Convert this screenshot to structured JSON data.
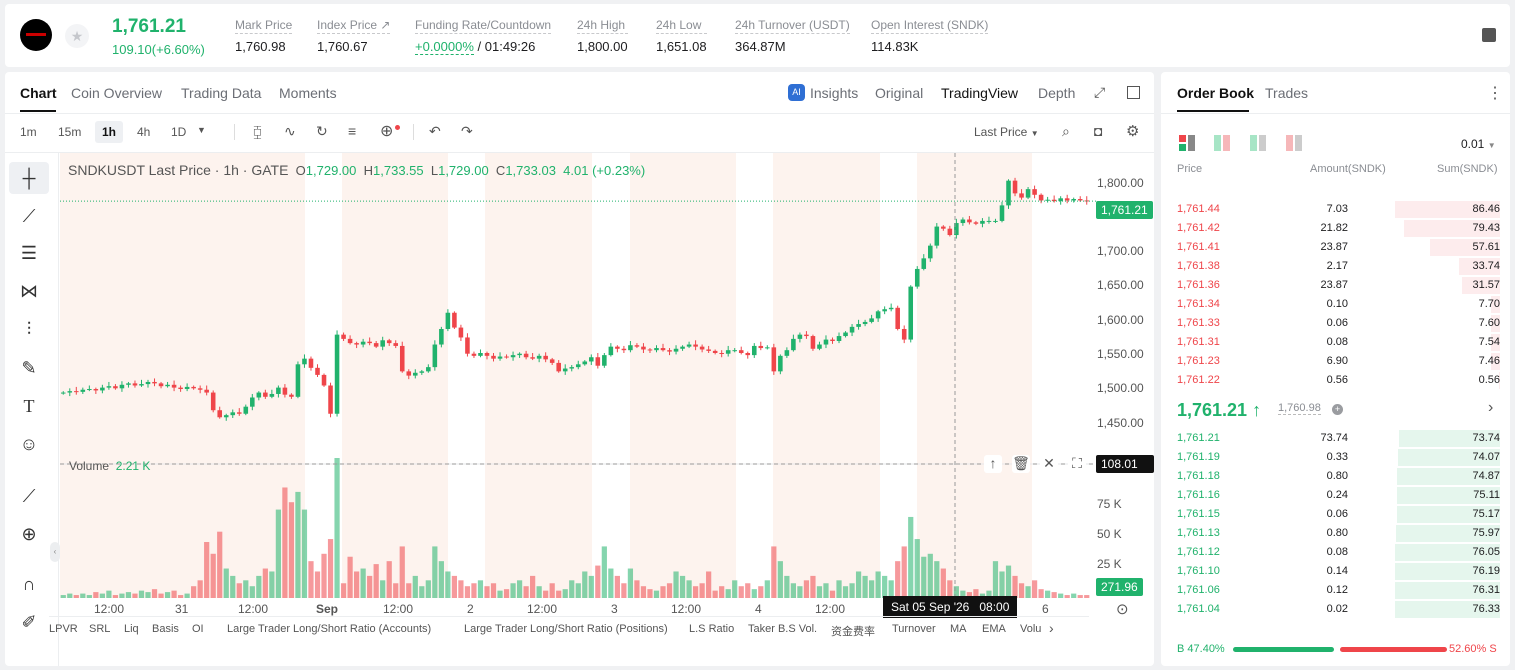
{
  "ticker": {
    "last": "1,761.21",
    "change": "109.10(+6.60%)",
    "stats": [
      {
        "label": "Mark Price",
        "value": "1,760.98"
      },
      {
        "label": "Index Price ↗",
        "value": "1,760.67"
      },
      {
        "label": "Funding Rate/Countdown",
        "value": "+0.0000%",
        "value2": " / 01:49:26"
      },
      {
        "label": "24h High",
        "value": "1,800.00"
      },
      {
        "label": "24h Low",
        "value": "1,651.08"
      },
      {
        "label": "24h Turnover (USDT)",
        "value": "364.87M"
      },
      {
        "label": "Open Interest (SNDK)",
        "value": "114.83K"
      }
    ]
  },
  "chart_tabs": [
    "Chart",
    "Coin Overview",
    "Trading Data",
    "Moments"
  ],
  "view_tabs": [
    "Insights",
    "Original",
    "TradingView",
    "Depth"
  ],
  "intervals": [
    "1m",
    "15m",
    "1h",
    "4h",
    "1D"
  ],
  "price_type": "Last Price",
  "legend": {
    "symbol": "SNDKUSDT Last Price · 1h · GATE",
    "o": "1,729.00",
    "h": "1,733.55",
    "l": "1,729.00",
    "c": "1,733.03",
    "chg": "4.01 (+0.23%)"
  },
  "volume_label": "Volume",
  "volume_value": "2.21 K",
  "price_axis": [
    "1,800.00",
    "1,750.00",
    "1,700.00",
    "1,650.00",
    "1,600.00",
    "1,550.00",
    "1,500.00",
    "1,450.00"
  ],
  "volume_axis": [
    "75 K",
    "50 K",
    "25 K"
  ],
  "time_axis": [
    "12:00",
    "31",
    "12:00",
    "Sep",
    "12:00",
    "2",
    "12:00",
    "3",
    "12:00",
    "4",
    "12:00",
    "6"
  ],
  "last_price_tag": "1,761.21",
  "volume_tag": "108.01 K",
  "volume_last_tag": "271.96",
  "crosshair_time": "Sat 05 Sep '26   08:00",
  "indicators": [
    "LPVR",
    "SRL",
    "Liq",
    "Basis",
    "OI",
    "Large Trader Long/Short Ratio (Accounts)",
    "Large Trader Long/Short Ratio (Positions)",
    "L.S Ratio",
    "Taker B.S Vol.",
    "资金费率",
    "Turnover",
    "MA",
    "EMA",
    "Volu"
  ],
  "chart_data": {
    "type": "candlestick",
    "interval": "1h",
    "symbol": "SNDKUSDT",
    "ylim": [
      1420,
      1815
    ],
    "close": [
      1490,
      1492,
      1491,
      1494,
      1495,
      1493,
      1497,
      1499,
      1496,
      1501,
      1503,
      1500,
      1502,
      1505,
      1503,
      1499,
      1501,
      1497,
      1495,
      1498,
      1496,
      1494,
      1490,
      1465,
      1455,
      1458,
      1462,
      1460,
      1470,
      1483,
      1490,
      1484,
      1488,
      1497,
      1487,
      1484,
      1530,
      1538,
      1525,
      1515,
      1500,
      1460,
      1572,
      1566,
      1560,
      1558,
      1562,
      1560,
      1555,
      1564,
      1560,
      1556,
      1520,
      1514,
      1518,
      1520,
      1526,
      1558,
      1580,
      1603,
      1582,
      1568,
      1545,
      1542,
      1546,
      1542,
      1538,
      1541,
      1540,
      1543,
      1545,
      1540,
      1538,
      1542,
      1537,
      1532,
      1520,
      1524,
      1526,
      1530,
      1534,
      1540,
      1528,
      1543,
      1555,
      1552,
      1550,
      1557,
      1555,
      1551,
      1550,
      1553,
      1550,
      1548,
      1552,
      1555,
      1558,
      1555,
      1551,
      1549,
      1546,
      1545,
      1550,
      1550,
      1546,
      1543,
      1556,
      1553,
      1554,
      1520,
      1542,
      1550,
      1566,
      1572,
      1570,
      1552,
      1558,
      1565,
      1563,
      1570,
      1575,
      1583,
      1587,
      1590,
      1595,
      1605,
      1608,
      1610,
      1580,
      1565,
      1640,
      1665,
      1680,
      1698,
      1725,
      1722,
      1713,
      1730,
      1735,
      1731,
      1729,
      1733,
      1733,
      1733,
      1755,
      1790,
      1772,
      1766,
      1778,
      1770,
      1762,
      1763,
      1761,
      1765,
      1762,
      1764,
      1762,
      1761
    ],
    "volume": [
      2,
      3,
      2,
      3,
      2,
      4,
      3,
      5,
      2,
      3,
      4,
      3,
      5,
      4,
      6,
      3,
      4,
      5,
      2,
      3,
      8,
      12,
      38,
      30,
      45,
      20,
      15,
      10,
      12,
      8,
      15,
      20,
      18,
      60,
      75,
      65,
      72,
      60,
      25,
      18,
      30,
      40,
      95,
      10,
      28,
      18,
      20,
      15,
      23,
      12,
      25,
      10,
      35,
      10,
      15,
      8,
      12,
      35,
      25,
      18,
      15,
      12,
      8,
      10,
      12,
      8,
      10,
      5,
      6,
      10,
      12,
      8,
      15,
      8,
      5,
      10,
      5,
      6,
      12,
      10,
      18,
      15,
      22,
      35,
      20,
      15,
      10,
      20,
      12,
      8,
      6,
      5,
      8,
      10,
      18,
      15,
      12,
      8,
      10,
      18,
      5,
      8,
      6,
      12,
      8,
      10,
      6,
      8,
      12,
      35,
      25,
      15,
      10,
      8,
      12,
      15,
      8,
      10,
      5,
      12,
      8,
      10,
      18,
      15,
      12,
      18,
      15,
      12,
      25,
      35,
      55,
      40,
      28,
      30,
      25,
      20,
      12,
      8,
      5,
      4,
      6,
      3,
      5,
      25,
      18,
      22,
      15,
      10,
      8,
      12,
      6,
      5,
      4,
      3,
      2,
      3,
      2,
      2
    ]
  },
  "book": {
    "tabs": [
      "Order Book",
      "Trades"
    ],
    "precision": "0.01",
    "headers": [
      "Price",
      "Amount(SNDK)",
      "Sum(SNDK)"
    ],
    "asks": [
      [
        "1,761.44",
        "7.03",
        "86.46"
      ],
      [
        "1,761.42",
        "21.82",
        "79.43"
      ],
      [
        "1,761.41",
        "23.87",
        "57.61"
      ],
      [
        "1,761.38",
        "2.17",
        "33.74"
      ],
      [
        "1,761.36",
        "23.87",
        "31.57"
      ],
      [
        "1,761.34",
        "0.10",
        "7.70"
      ],
      [
        "1,761.33",
        "0.06",
        "7.60"
      ],
      [
        "1,761.31",
        "0.08",
        "7.54"
      ],
      [
        "1,761.23",
        "6.90",
        "7.46"
      ],
      [
        "1,761.22",
        "0.56",
        "0.56"
      ]
    ],
    "mid": "1,761.21",
    "mid_mark": "1,760.98",
    "bids": [
      [
        "1,761.21",
        "73.74",
        "73.74"
      ],
      [
        "1,761.19",
        "0.33",
        "74.07"
      ],
      [
        "1,761.18",
        "0.80",
        "74.87"
      ],
      [
        "1,761.16",
        "0.24",
        "75.11"
      ],
      [
        "1,761.15",
        "0.06",
        "75.17"
      ],
      [
        "1,761.13",
        "0.80",
        "75.97"
      ],
      [
        "1,761.12",
        "0.08",
        "76.05"
      ],
      [
        "1,761.10",
        "0.14",
        "76.19"
      ],
      [
        "1,761.06",
        "0.12",
        "76.31"
      ],
      [
        "1,761.04",
        "0.02",
        "76.33"
      ]
    ],
    "ratio_b": "47.40%",
    "ratio_s": "52.60%",
    "ratio_b_label": "B",
    "ratio_s_label": "S",
    "ratio_b_value": 0.474
  },
  "colors": {
    "up": "#20b26c",
    "down": "#ef454a"
  }
}
